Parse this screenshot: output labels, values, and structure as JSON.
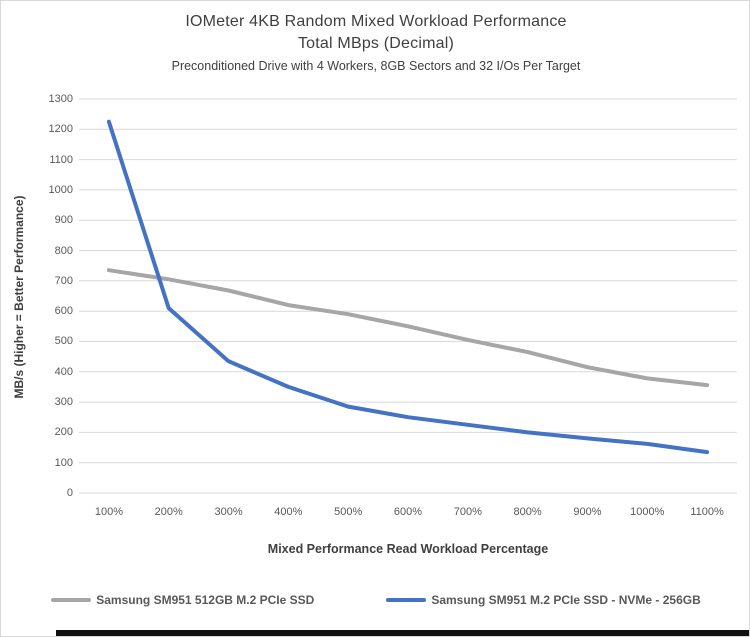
{
  "chart": {
    "title_line1": "IOMeter 4KB Random Mixed Workload Performance",
    "title_line2": "Total MBps (Decimal)",
    "subtitle": "Preconditioned Drive with 4 Workers, 8GB Sectors and 32 I/Os Per Target",
    "y_axis_title": "MB/s (Higher = Better Performance)",
    "x_axis_title": "Mixed Performance Read Workload Percentage"
  },
  "chart_data": {
    "type": "line",
    "title": "IOMeter 4KB Random Mixed Workload Performance",
    "subtitle": "Total MBps (Decimal)",
    "note": "Preconditioned Drive with 4 Workers, 8GB Sectors and 32 I/Os Per Target",
    "xlabel": "Mixed Performance Read Workload Percentage",
    "ylabel": "MB/s (Higher = Better Performance)",
    "categories": [
      "100%",
      "200%",
      "300%",
      "400%",
      "500%",
      "600%",
      "700%",
      "800%",
      "900%",
      "1000%",
      "1100%"
    ],
    "series": [
      {
        "name": "Samsung SM951 512GB M.2 PCIe SSD",
        "color": "#a6a6a6",
        "values": [
          735,
          705,
          668,
          620,
          590,
          550,
          505,
          465,
          415,
          378,
          356
        ]
      },
      {
        "name": "Samsung SM951 M.2 PCIe SSD - NVMe - 256GB",
        "color": "#4472c4",
        "values": [
          1225,
          610,
          435,
          350,
          285,
          250,
          225,
          200,
          180,
          162,
          135
        ]
      }
    ],
    "ylim": [
      0,
      1300
    ],
    "ytick_step": 100,
    "grid": true,
    "gridline_color": "#d9d9d9",
    "legend_position": "bottom"
  }
}
